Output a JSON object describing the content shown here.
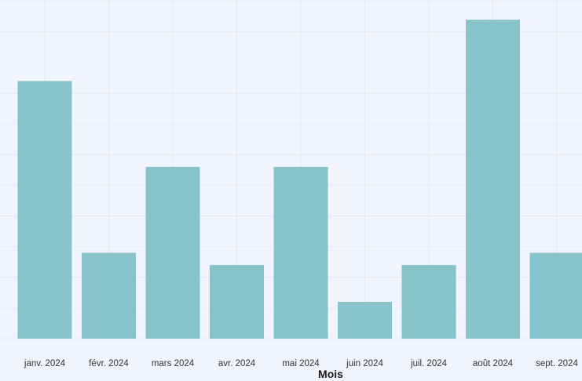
{
  "chart_data": {
    "type": "bar",
    "xlabel": "Mois",
    "ylabel": "",
    "categories": [
      "janv. 2024",
      "févr. 2024",
      "mars 2024",
      "avr. 2024",
      "mai 2024",
      "juin 2024",
      "juil. 2024",
      "août 2024",
      "sept. 2024"
    ],
    "values": [
      21,
      7,
      14,
      6,
      14,
      3,
      6,
      26,
      7
    ],
    "ylim": [
      0,
      27.5
    ],
    "grid": true,
    "legend": "none",
    "colors": {
      "bar": "#86c3ca",
      "background": "#f1f4fc",
      "grid": "#e3e7ef"
    }
  }
}
